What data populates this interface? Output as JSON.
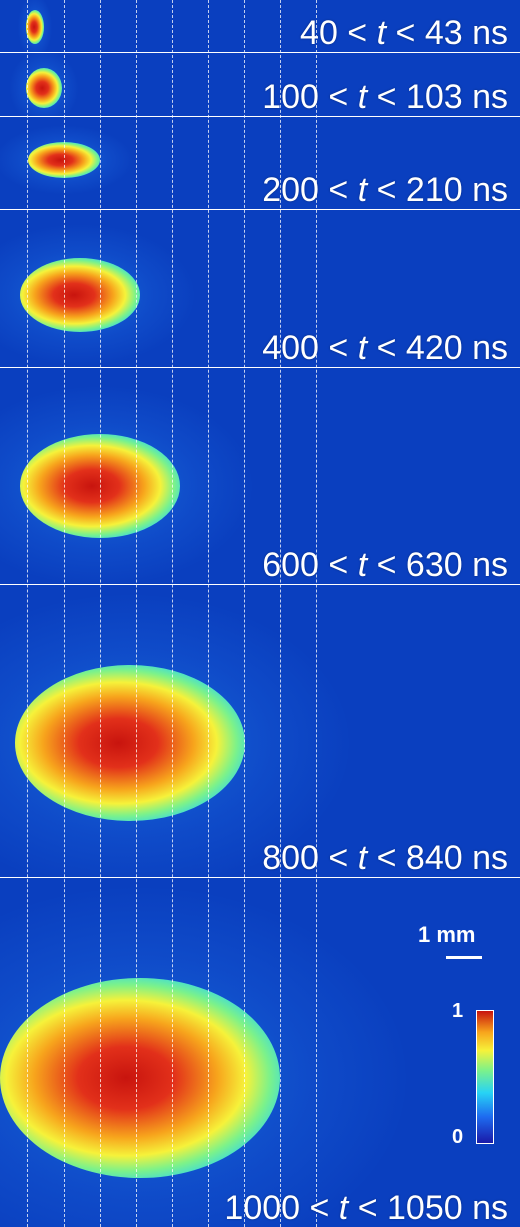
{
  "panels": [
    {
      "t_low": "40",
      "t_high": "43",
      "unit": "ns"
    },
    {
      "t_low": "100",
      "t_high": "103",
      "unit": "ns"
    },
    {
      "t_low": "200",
      "t_high": "210",
      "unit": "ns"
    },
    {
      "t_low": "400",
      "t_high": "420",
      "unit": "ns"
    },
    {
      "t_low": "600",
      "t_high": "630",
      "unit": "ns"
    },
    {
      "t_low": "800",
      "t_high": "840",
      "unit": "ns"
    },
    {
      "t_low": "1000",
      "t_high": "1050",
      "unit": "ns"
    }
  ],
  "time_symbol": "t",
  "lt_symbol": "<",
  "scale_bar": {
    "label": "1 mm"
  },
  "colorbar": {
    "max_label": "1",
    "min_label": "0"
  },
  "colors": {
    "background": "#0a3fbf",
    "peak": "#c8140e"
  }
}
